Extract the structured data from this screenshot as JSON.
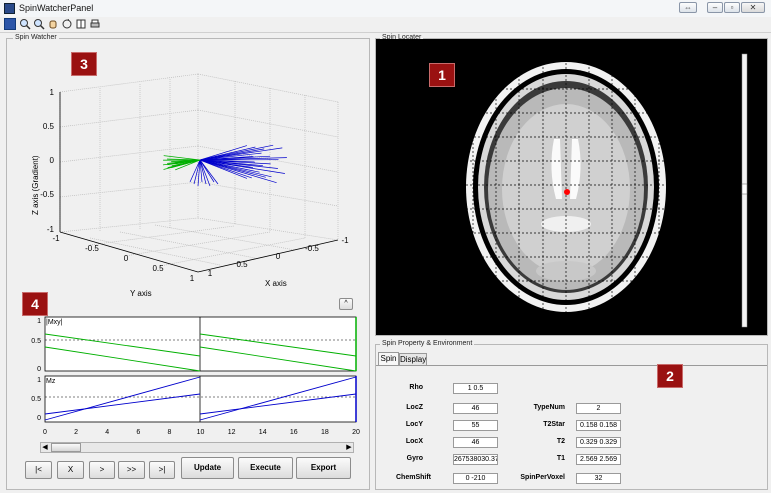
{
  "window": {
    "title": "SpinWatcherPanel"
  },
  "panels": {
    "spin_watcher": "Spin Watcher",
    "spin_locater": "Spin Locater",
    "spin_property": "Spin Property & Environment"
  },
  "badges": [
    "1",
    "2",
    "3",
    "4"
  ],
  "plot3d": {
    "zlabel": "Z axis (Gradient)",
    "xlabel": "X axis",
    "ylabel": "Y axis",
    "z_ticks": [
      "1",
      "0.5",
      "0",
      "-0.5",
      "-1"
    ],
    "y_ticks": [
      "-1",
      "-0.5",
      "0",
      "0.5",
      "1"
    ],
    "x_ticks": [
      "-1",
      "-0.5",
      "0",
      "0.5",
      "1"
    ]
  },
  "signal_plots": {
    "mxy_label": "|Mxy|",
    "mz_label": "Mz",
    "mxy_yticks": [
      "1",
      "0.5",
      "0"
    ],
    "mz_yticks": [
      "1",
      "0.5",
      "0"
    ],
    "xticks": [
      "0",
      "2",
      "4",
      "6",
      "8",
      "10",
      "12",
      "14",
      "16",
      "18",
      "20"
    ],
    "collapse_label": "^"
  },
  "nav_buttons": [
    "|<",
    "X",
    ">",
    ">>",
    ">|"
  ],
  "action_buttons": {
    "update": "Update",
    "execute": "Execute",
    "export": "Export"
  },
  "tabs": [
    "Spin",
    "Display"
  ],
  "properties_left": [
    {
      "label": "Rho",
      "value": "1 0.5"
    },
    {
      "label": "LocZ",
      "value": "46"
    },
    {
      "label": "LocY",
      "value": "55"
    },
    {
      "label": "LocX",
      "value": "46"
    },
    {
      "label": "Gyro",
      "value": "267538030.370"
    },
    {
      "label": "ChemShift",
      "value": "0 -210"
    }
  ],
  "properties_right": [
    {
      "label": "TypeNum",
      "value": "2"
    },
    {
      "label": "T2Star",
      "value": "0.158 0.158"
    },
    {
      "label": "T2",
      "value": "0.329 0.329"
    },
    {
      "label": "T1",
      "value": "2.569 2.569"
    },
    {
      "label": "SpinPerVoxel",
      "value": "32"
    }
  ],
  "colors": {
    "badge": "#9a1111",
    "mxy": "#00b000",
    "mz": "#0000cc",
    "spin_marker": "#ff0000"
  }
}
